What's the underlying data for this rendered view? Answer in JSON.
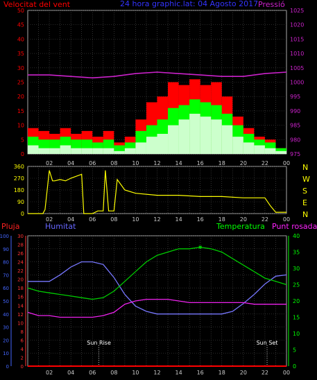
{
  "chart_data": [
    {
      "type": "line",
      "title": "24 hora graphic.lat: 04 Agosto 2017",
      "left_label": "Velocitat del vent",
      "right_label": "Pressió",
      "x_ticks": [
        "02",
        "04",
        "06",
        "08",
        "10",
        "12",
        "14",
        "16",
        "18",
        "20",
        "22",
        "00"
      ],
      "ylim_left": [
        0,
        50
      ],
      "y_ticks_left": [
        0,
        5,
        10,
        15,
        20,
        25,
        30,
        35,
        40,
        45,
        50
      ],
      "ylim_right": [
        975,
        1025
      ],
      "y_ticks_right": [
        975,
        980,
        985,
        990,
        995,
        1000,
        1005,
        1010,
        1015,
        1020,
        1025
      ],
      "colors": {
        "gust": "#ff0000",
        "wind": "#00ff00",
        "avg": "#ccffcc",
        "pressure": "#cc22cc",
        "left_axis": "#ff0000",
        "right_axis": "#cc22cc"
      },
      "series": [
        {
          "key": "gust",
          "hours": [
            1,
            2,
            3,
            4,
            5,
            6,
            7,
            8,
            9,
            10,
            11,
            12,
            13,
            14,
            15,
            16,
            17,
            18,
            19,
            20,
            21,
            22,
            23,
            24
          ],
          "values": [
            9,
            8,
            7,
            9,
            7,
            8,
            6,
            8,
            4,
            6,
            12,
            18,
            20,
            25,
            24,
            26,
            24,
            25,
            20,
            13,
            9,
            6,
            5,
            2
          ]
        },
        {
          "key": "wind",
          "hours": [
            1,
            2,
            3,
            4,
            5,
            6,
            7,
            8,
            9,
            10,
            11,
            12,
            13,
            14,
            15,
            16,
            17,
            18,
            19,
            20,
            21,
            22,
            23,
            24
          ],
          "values": [
            6,
            5,
            5,
            6,
            5,
            5,
            4,
            5,
            3,
            4,
            8,
            10,
            12,
            16,
            17,
            19,
            18,
            17,
            14,
            10,
            7,
            5,
            4,
            2
          ]
        },
        {
          "key": "avg",
          "hours": [
            1,
            2,
            3,
            4,
            5,
            6,
            7,
            8,
            9,
            10,
            11,
            12,
            13,
            14,
            15,
            16,
            17,
            18,
            19,
            20,
            21,
            22,
            23,
            24
          ],
          "values": [
            3,
            2,
            2,
            3,
            2,
            2,
            2,
            2,
            1,
            2,
            4,
            6,
            7,
            10,
            12,
            14,
            13,
            12,
            10,
            6,
            4,
            3,
            2,
            1
          ]
        },
        {
          "key": "pressure",
          "hours": [
            0,
            2,
            4,
            6,
            8,
            10,
            12,
            14,
            16,
            18,
            20,
            22,
            24
          ],
          "values": [
            1002.5,
            1002.5,
            1002,
            1001.5,
            1002,
            1003,
            1003.5,
            1003,
            1002.5,
            1002,
            1002,
            1003,
            1003.5
          ]
        }
      ]
    },
    {
      "type": "line",
      "x_ticks": [
        "02",
        "04",
        "06",
        "08",
        "10",
        "12",
        "14",
        "16",
        "18",
        "20",
        "22",
        "00"
      ],
      "ylim": [
        0,
        360
      ],
      "y_ticks": [
        0,
        90,
        180,
        270,
        360
      ],
      "compass_labels": [
        "N",
        "W",
        "S",
        "E",
        "N"
      ],
      "colors": {
        "direction": "#ffff00",
        "axis": "#ffff00"
      },
      "series": [
        {
          "key": "direction",
          "hours": [
            0,
            1.4,
            1.6,
            2,
            2.3,
            2.5,
            3,
            3.5,
            4,
            5,
            5.2,
            6,
            6.5,
            7,
            7.2,
            7.5,
            8,
            8.3,
            9,
            10,
            12,
            14,
            16,
            18,
            20,
            22,
            22.5,
            23,
            24
          ],
          "values": [
            0,
            0,
            30,
            330,
            250,
            250,
            260,
            250,
            270,
            300,
            0,
            0,
            20,
            20,
            330,
            20,
            20,
            260,
            180,
            155,
            140,
            140,
            130,
            130,
            120,
            120,
            60,
            10,
            10
          ]
        }
      ]
    },
    {
      "type": "line",
      "left_labels": [
        "Pluja",
        "Humitat"
      ],
      "right_labels": [
        "Temperatura",
        "Punt rosada"
      ],
      "event_labels": [
        "Sun Rise",
        "Sun Set"
      ],
      "x_ticks": [
        "02",
        "04",
        "06",
        "08",
        "10",
        "12",
        "14",
        "16",
        "18",
        "20",
        "22",
        "00"
      ],
      "y_ticks_rain": [
        0,
        10,
        20,
        30,
        40,
        50,
        60,
        70,
        80,
        90,
        100
      ],
      "y_ticks_humidity": [
        0,
        2,
        4,
        6,
        8,
        10,
        12,
        14,
        16,
        18,
        20,
        22,
        24,
        26,
        28,
        30
      ],
      "y_ticks_temp": [
        0,
        5,
        10,
        15,
        20,
        25,
        30,
        35,
        40
      ],
      "ylim_rain": [
        0,
        100
      ],
      "ylim_humidity": [
        0,
        30
      ],
      "ylim_temp": [
        0,
        40
      ],
      "events_hours": [
        6.6,
        22.2
      ],
      "colors": {
        "rain": "#ff0000",
        "humidity": "#7777ff",
        "temperature": "#00cc00",
        "dew": "#ee22ee",
        "axis_rain": "#4466ff",
        "axis_humidity": "#ff3333",
        "axis_temp": "#00ff00"
      },
      "series": [
        {
          "key": "humidity",
          "axis": "rain",
          "hours": [
            0,
            2,
            3,
            4,
            5,
            6,
            7,
            8,
            9,
            10,
            11,
            12,
            14,
            16,
            18,
            19,
            20,
            21,
            22,
            23,
            24
          ],
          "values": [
            65,
            65,
            70,
            76,
            80,
            80,
            78,
            68,
            55,
            46,
            42,
            40,
            40,
            40,
            40,
            42,
            48,
            55,
            63,
            69,
            70
          ]
        },
        {
          "key": "temperature",
          "axis": "temp",
          "hours": [
            0,
            1,
            2,
            3,
            4,
            5,
            6,
            7,
            8,
            9,
            10,
            11,
            12,
            13,
            14,
            15,
            16,
            17,
            18,
            19,
            20,
            21,
            22,
            23,
            24
          ],
          "values": [
            24,
            23,
            22.5,
            22,
            21.5,
            21,
            20.5,
            21,
            23,
            26,
            29,
            32,
            34,
            35,
            36,
            36,
            36.5,
            36,
            35,
            33,
            31,
            29,
            27,
            26,
            25
          ]
        },
        {
          "key": "dew",
          "axis": "temp",
          "hours": [
            0,
            1,
            2,
            3,
            4,
            5,
            6,
            7,
            8,
            9,
            10,
            11,
            12,
            13,
            14,
            15,
            16,
            17,
            18,
            19,
            20,
            21,
            22,
            23,
            24
          ],
          "values": [
            16.5,
            15.5,
            15.5,
            15,
            15,
            15,
            15,
            15.5,
            16.5,
            19,
            20,
            20.5,
            20.5,
            20.5,
            20,
            19.5,
            19.5,
            19.5,
            19.5,
            19.5,
            19.5,
            19,
            19,
            19,
            19
          ]
        },
        {
          "key": "rain",
          "axis": "rain",
          "hours": [
            0,
            24
          ],
          "values": [
            0,
            0
          ]
        }
      ]
    }
  ]
}
